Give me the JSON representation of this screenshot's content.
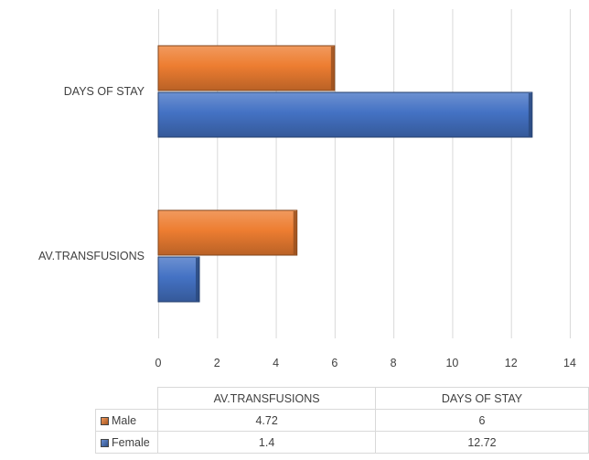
{
  "chart_data": {
    "type": "bar",
    "orientation": "horizontal",
    "style": "3d-bevel",
    "categories": [
      "AV.TRANSFUSIONS",
      "DAYS OF STAY"
    ],
    "series": [
      {
        "name": "Male",
        "values": [
          4.72,
          6
        ],
        "color": "#ED7D31"
      },
      {
        "name": "Female",
        "values": [
          1.4,
          12.72
        ],
        "color": "#4472C4"
      }
    ],
    "xlim": [
      0,
      14
    ],
    "xticks": [
      0,
      2,
      4,
      6,
      8,
      10,
      12,
      14
    ],
    "grid": "vertical",
    "legend": "data-table",
    "data_table": {
      "columns": [
        "AV.TRANSFUSIONS",
        "DAYS OF STAY"
      ],
      "rows": [
        {
          "name": "Male",
          "cells": [
            "4.72",
            "6"
          ]
        },
        {
          "name": "Female",
          "cells": [
            "1.4",
            "12.72"
          ]
        }
      ]
    }
  }
}
